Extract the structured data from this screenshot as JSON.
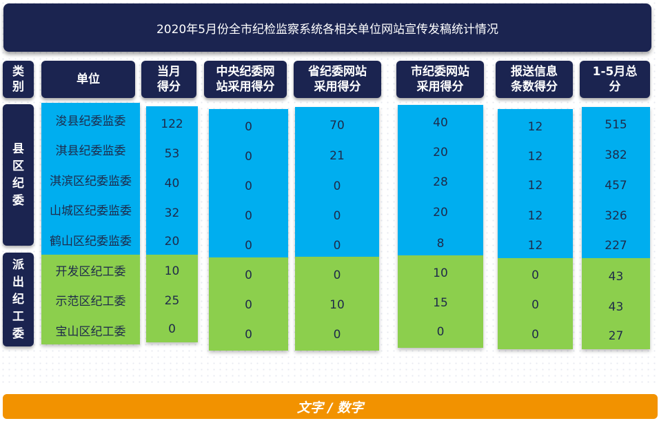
{
  "title": "2020年5月份全市纪检监察系统各相关单位网站宣传发稿统计情况",
  "headers": {
    "category": "类\n别",
    "unit": "单位",
    "monthly": "当月\n得分",
    "central": "中央纪委网\n站采用得分",
    "provincial": "省纪委网站\n采用得分",
    "city": "市纪委网站\n采用得分",
    "report": "报送信息\n条数得分",
    "total": "1-5月总\n分"
  },
  "categories": {
    "county": "县\n区\n纪\n委",
    "dispatched": "派\n出\n纪\n工\n委"
  },
  "rows": [
    {
      "unit": "浚县纪委监委",
      "monthly": "122",
      "central": "0",
      "provincial": "70",
      "city": "40",
      "report": "12",
      "total": "515"
    },
    {
      "unit": "淇县纪委监委",
      "monthly": "53",
      "central": "0",
      "provincial": "21",
      "city": "20",
      "report": "12",
      "total": "382"
    },
    {
      "unit": "淇滨区纪委监委",
      "monthly": "40",
      "central": "0",
      "provincial": "0",
      "city": "28",
      "report": "12",
      "total": "457"
    },
    {
      "unit": "山城区纪委监委",
      "monthly": "32",
      "central": "0",
      "provincial": "0",
      "city": "20",
      "report": "12",
      "total": "326"
    },
    {
      "unit": "鹤山区纪委监委",
      "monthly": "20",
      "central": "0",
      "provincial": "0",
      "city": "8",
      "report": "12",
      "total": "227"
    },
    {
      "unit": "开发区纪工委",
      "monthly": "10",
      "central": "0",
      "provincial": "0",
      "city": "10",
      "report": "0",
      "total": "43"
    },
    {
      "unit": "示范区纪工委",
      "monthly": "25",
      "central": "0",
      "provincial": "10",
      "city": "15",
      "report": "0",
      "total": "43"
    },
    {
      "unit": "宝山区纪工委",
      "monthly": "0",
      "central": "0",
      "provincial": "0",
      "city": "0",
      "report": "0",
      "total": "27"
    }
  ],
  "footer": "文字 / 数字",
  "colors": {
    "header_navy": "#1b2450",
    "county_blue": "#00aeef",
    "dispatched_green": "#8ccf4d",
    "footer_orange": "#f29200"
  }
}
